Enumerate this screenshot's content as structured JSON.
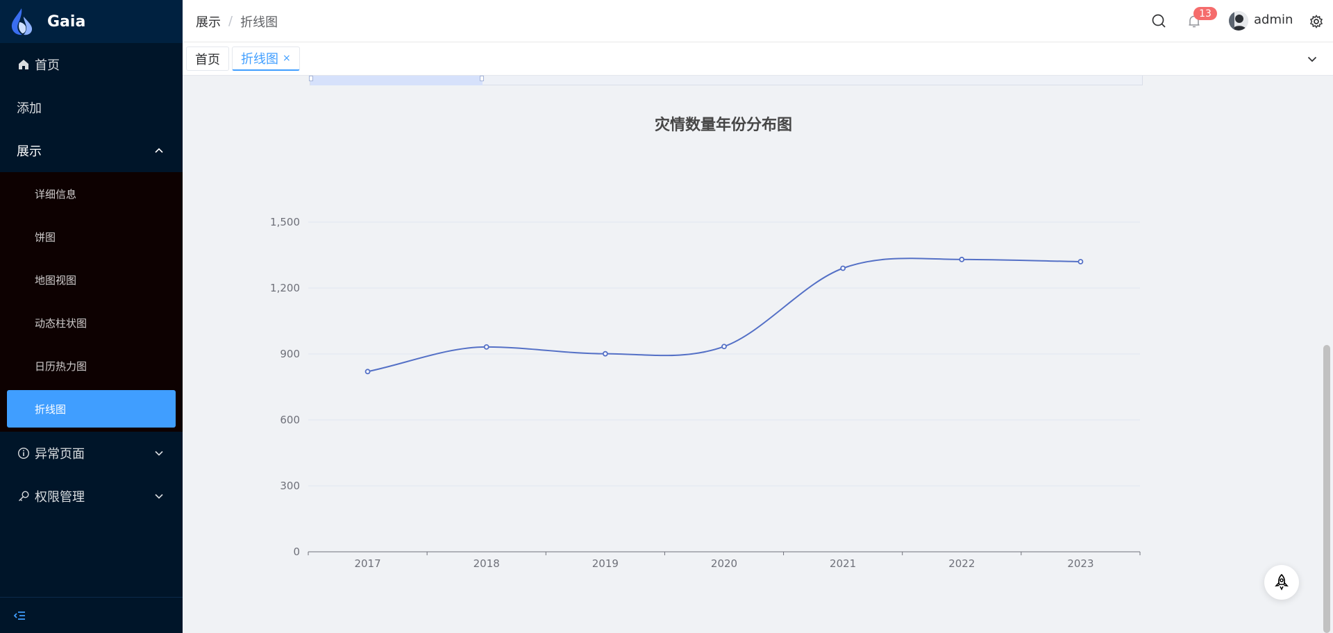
{
  "app": {
    "title": "Gaia"
  },
  "sidebar": {
    "items": [
      {
        "label": "首页",
        "icon": "home-icon"
      },
      {
        "label": "添加"
      },
      {
        "label": "展示"
      },
      {
        "label": "异常页面",
        "icon": "info-icon"
      },
      {
        "label": "权限管理",
        "icon": "key-icon"
      }
    ],
    "submenu": [
      {
        "label": "详细信息"
      },
      {
        "label": "饼图"
      },
      {
        "label": "地图视图"
      },
      {
        "label": "动态柱状图"
      },
      {
        "label": "日历热力图"
      },
      {
        "label": "折线图",
        "active": true
      }
    ]
  },
  "header": {
    "breadcrumb": [
      "展示",
      "折线图"
    ],
    "breadcrumb_sep": "/",
    "notifications_count": "13",
    "username": "admin"
  },
  "tabs": [
    {
      "label": "首页"
    },
    {
      "label": "折线图",
      "close": "×"
    }
  ],
  "colors": {
    "accent": "#409eff",
    "line": "#5470c6",
    "sidebar": "#001529",
    "badge": "#f56c6c"
  },
  "chart_data": {
    "type": "line",
    "title": "灾情数量年份分布图",
    "categories": [
      "2017",
      "2018",
      "2019",
      "2020",
      "2021",
      "2022",
      "2023"
    ],
    "values": [
      820,
      932,
      901,
      934,
      1290,
      1330,
      1320
    ],
    "ylim": [
      0,
      1500
    ],
    "yticks": [
      "0",
      "300",
      "600",
      "900",
      "1,200",
      "1,500"
    ],
    "smooth": true,
    "grid": true
  }
}
